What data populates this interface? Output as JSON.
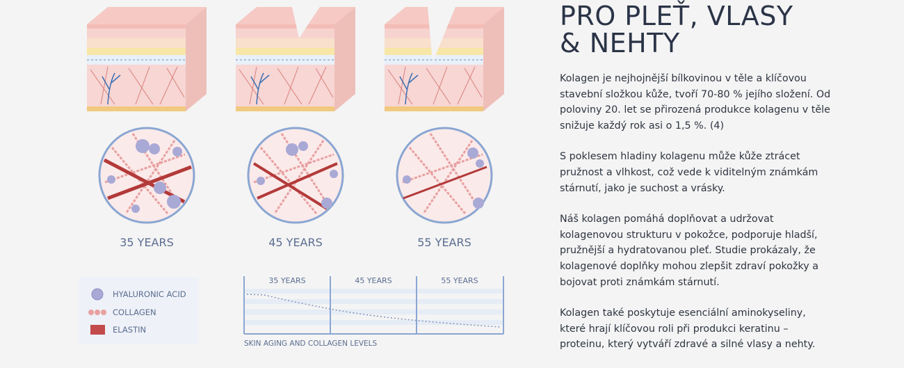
{
  "illustration": {
    "stages": [
      {
        "label": "35 YEARS"
      },
      {
        "label": "45 YEARS"
      },
      {
        "label": "55 YEARS"
      }
    ],
    "legend": [
      "HYALURONIC ACID",
      "COLLAGEN",
      "ELASTIN"
    ],
    "chart": {
      "title": "SKIN AGING AND COLLAGEN LEVELS",
      "columns": [
        "35 YEARS",
        "45 YEARS",
        "55 YEARS"
      ]
    }
  },
  "article": {
    "title": "PRO PLEŤ, VLASY & NEHTY",
    "paragraphs": [
      "Kolagen je nejhojnější bílkovinou v těle a klíčovou stavební složkou kůže, tvoří 70-80 % jejího složení. Od poloviny 20. let se přirozená produkce kolagenu v těle snižuje každý rok asi o 1,5 %. (4)",
      "S poklesem hladiny kolagenu může kůže ztrácet pružnost a vlhkost, což vede k viditelným známkám stárnutí, jako je suchost a vrásky.",
      "Náš kolagen pomáhá doplňovat a udržovat kolagenovou strukturu v pokožce, podporuje hladší, pružnější a hydratovanou pleť. Studie prokázaly, že kolagenové doplňky mohou zlepšit zdraví pokožky a bojovat proti známkám stárnutí.",
      "Kolagen také poskytuje esenciální aminokyseliny, které hrají klíčovou roli při produkci keratinu – proteinu, který vytváří zdravé a silné vlasy a nehty."
    ]
  }
}
